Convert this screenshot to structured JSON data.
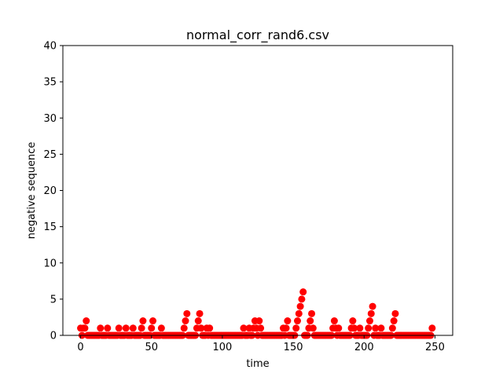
{
  "chart_data": {
    "type": "scatter",
    "title": "normal_corr_rand6.csv",
    "xlabel": "time",
    "ylabel": "negative sequence",
    "xlim": [
      -12.5,
      262.5
    ],
    "ylim": [
      0,
      40
    ],
    "xticks": [
      0,
      50,
      100,
      150,
      200,
      250
    ],
    "yticks": [
      0,
      5,
      10,
      15,
      20,
      25,
      30,
      35,
      40
    ],
    "grid": false,
    "marker_color": "#ff0000",
    "series": [
      {
        "values": [
          [
            0,
            1
          ],
          [
            1,
            0
          ],
          [
            2,
            1
          ],
          [
            3,
            1
          ],
          [
            4,
            2
          ],
          [
            5,
            0
          ],
          [
            6,
            0
          ],
          [
            7,
            0
          ],
          [
            8,
            0
          ],
          [
            9,
            0
          ],
          [
            10,
            0
          ],
          [
            11,
            0
          ],
          [
            12,
            0
          ],
          [
            13,
            0
          ],
          [
            14,
            1
          ],
          [
            15,
            0
          ],
          [
            16,
            0
          ],
          [
            17,
            0
          ],
          [
            18,
            0
          ],
          [
            19,
            1
          ],
          [
            20,
            0
          ],
          [
            21,
            0
          ],
          [
            22,
            0
          ],
          [
            23,
            0
          ],
          [
            24,
            0
          ],
          [
            25,
            0
          ],
          [
            26,
            0
          ],
          [
            27,
            1
          ],
          [
            28,
            0
          ],
          [
            29,
            0
          ],
          [
            30,
            0
          ],
          [
            31,
            0
          ],
          [
            32,
            1
          ],
          [
            33,
            0
          ],
          [
            34,
            0
          ],
          [
            35,
            0
          ],
          [
            36,
            0
          ],
          [
            37,
            1
          ],
          [
            38,
            0
          ],
          [
            39,
            0
          ],
          [
            40,
            0
          ],
          [
            41,
            0
          ],
          [
            42,
            0
          ],
          [
            43,
            1
          ],
          [
            44,
            2
          ],
          [
            45,
            0
          ],
          [
            46,
            0
          ],
          [
            47,
            0
          ],
          [
            48,
            0
          ],
          [
            49,
            0
          ],
          [
            50,
            1
          ],
          [
            51,
            2
          ],
          [
            52,
            0
          ],
          [
            53,
            0
          ],
          [
            54,
            0
          ],
          [
            55,
            0
          ],
          [
            56,
            0
          ],
          [
            57,
            1
          ],
          [
            58,
            0
          ],
          [
            59,
            0
          ],
          [
            60,
            0
          ],
          [
            61,
            0
          ],
          [
            62,
            0
          ],
          [
            63,
            0
          ],
          [
            64,
            0
          ],
          [
            65,
            0
          ],
          [
            66,
            0
          ],
          [
            67,
            0
          ],
          [
            68,
            0
          ],
          [
            69,
            0
          ],
          [
            70,
            0
          ],
          [
            71,
            0
          ],
          [
            72,
            0
          ],
          [
            73,
            1
          ],
          [
            74,
            2
          ],
          [
            75,
            3
          ],
          [
            76,
            0
          ],
          [
            77,
            0
          ],
          [
            78,
            0
          ],
          [
            79,
            0
          ],
          [
            80,
            0
          ],
          [
            81,
            0
          ],
          [
            82,
            1
          ],
          [
            83,
            2
          ],
          [
            84,
            3
          ],
          [
            85,
            1
          ],
          [
            86,
            0
          ],
          [
            87,
            0
          ],
          [
            88,
            0
          ],
          [
            89,
            1
          ],
          [
            90,
            0
          ],
          [
            91,
            1
          ],
          [
            92,
            0
          ],
          [
            93,
            0
          ],
          [
            94,
            0
          ],
          [
            95,
            0
          ],
          [
            96,
            0
          ],
          [
            97,
            0
          ],
          [
            98,
            0
          ],
          [
            99,
            0
          ],
          [
            100,
            0
          ],
          [
            101,
            0
          ],
          [
            102,
            0
          ],
          [
            103,
            0
          ],
          [
            104,
            0
          ],
          [
            105,
            0
          ],
          [
            106,
            0
          ],
          [
            107,
            0
          ],
          [
            108,
            0
          ],
          [
            109,
            0
          ],
          [
            110,
            0
          ],
          [
            111,
            0
          ],
          [
            112,
            0
          ],
          [
            113,
            0
          ],
          [
            114,
            0
          ],
          [
            115,
            1
          ],
          [
            116,
            0
          ],
          [
            117,
            0
          ],
          [
            118,
            0
          ],
          [
            119,
            1
          ],
          [
            120,
            0
          ],
          [
            121,
            0
          ],
          [
            122,
            1
          ],
          [
            123,
            2
          ],
          [
            124,
            1
          ],
          [
            125,
            0
          ],
          [
            126,
            2
          ],
          [
            127,
            1
          ],
          [
            128,
            0
          ],
          [
            129,
            0
          ],
          [
            130,
            0
          ],
          [
            131,
            0
          ],
          [
            132,
            0
          ],
          [
            133,
            0
          ],
          [
            134,
            0
          ],
          [
            135,
            0
          ],
          [
            136,
            0
          ],
          [
            137,
            0
          ],
          [
            138,
            0
          ],
          [
            139,
            0
          ],
          [
            140,
            0
          ],
          [
            141,
            0
          ],
          [
            142,
            0
          ],
          [
            143,
            1
          ],
          [
            144,
            0
          ],
          [
            145,
            1
          ],
          [
            146,
            2
          ],
          [
            147,
            0
          ],
          [
            148,
            0
          ],
          [
            149,
            0
          ],
          [
            150,
            0
          ],
          [
            151,
            0
          ],
          [
            152,
            1
          ],
          [
            153,
            2
          ],
          [
            154,
            3
          ],
          [
            155,
            4
          ],
          [
            156,
            5
          ],
          [
            157,
            6
          ],
          [
            158,
            0
          ],
          [
            159,
            0
          ],
          [
            160,
            0
          ],
          [
            161,
            1
          ],
          [
            162,
            2
          ],
          [
            163,
            3
          ],
          [
            164,
            1
          ],
          [
            165,
            0
          ],
          [
            166,
            0
          ],
          [
            167,
            0
          ],
          [
            168,
            0
          ],
          [
            169,
            0
          ],
          [
            170,
            0
          ],
          [
            171,
            0
          ],
          [
            172,
            0
          ],
          [
            173,
            0
          ],
          [
            174,
            0
          ],
          [
            175,
            0
          ],
          [
            176,
            0
          ],
          [
            177,
            0
          ],
          [
            178,
            1
          ],
          [
            179,
            2
          ],
          [
            180,
            1
          ],
          [
            181,
            0
          ],
          [
            182,
            1
          ],
          [
            183,
            0
          ],
          [
            184,
            0
          ],
          [
            185,
            0
          ],
          [
            186,
            0
          ],
          [
            187,
            0
          ],
          [
            188,
            0
          ],
          [
            189,
            0
          ],
          [
            190,
            0
          ],
          [
            191,
            1
          ],
          [
            192,
            2
          ],
          [
            193,
            1
          ],
          [
            194,
            0
          ],
          [
            195,
            0
          ],
          [
            196,
            0
          ],
          [
            197,
            1
          ],
          [
            198,
            0
          ],
          [
            199,
            0
          ],
          [
            200,
            0
          ],
          [
            201,
            0
          ],
          [
            202,
            0
          ],
          [
            203,
            1
          ],
          [
            204,
            2
          ],
          [
            205,
            3
          ],
          [
            206,
            4
          ],
          [
            207,
            0
          ],
          [
            208,
            1
          ],
          [
            209,
            0
          ],
          [
            210,
            0
          ],
          [
            211,
            0
          ],
          [
            212,
            1
          ],
          [
            213,
            0
          ],
          [
            214,
            0
          ],
          [
            215,
            0
          ],
          [
            216,
            0
          ],
          [
            217,
            0
          ],
          [
            218,
            0
          ],
          [
            219,
            0
          ],
          [
            220,
            1
          ],
          [
            221,
            2
          ],
          [
            222,
            3
          ],
          [
            223,
            0
          ],
          [
            224,
            0
          ],
          [
            225,
            0
          ],
          [
            226,
            0
          ],
          [
            227,
            0
          ],
          [
            228,
            0
          ],
          [
            229,
            0
          ],
          [
            230,
            0
          ],
          [
            231,
            0
          ],
          [
            232,
            0
          ],
          [
            233,
            0
          ],
          [
            234,
            0
          ],
          [
            235,
            0
          ],
          [
            236,
            0
          ],
          [
            237,
            0
          ],
          [
            238,
            0
          ],
          [
            239,
            0
          ],
          [
            240,
            0
          ],
          [
            241,
            0
          ],
          [
            242,
            0
          ],
          [
            243,
            0
          ],
          [
            244,
            0
          ],
          [
            245,
            0
          ],
          [
            246,
            0
          ],
          [
            247,
            0
          ],
          [
            248,
            1
          ]
        ]
      }
    ]
  }
}
